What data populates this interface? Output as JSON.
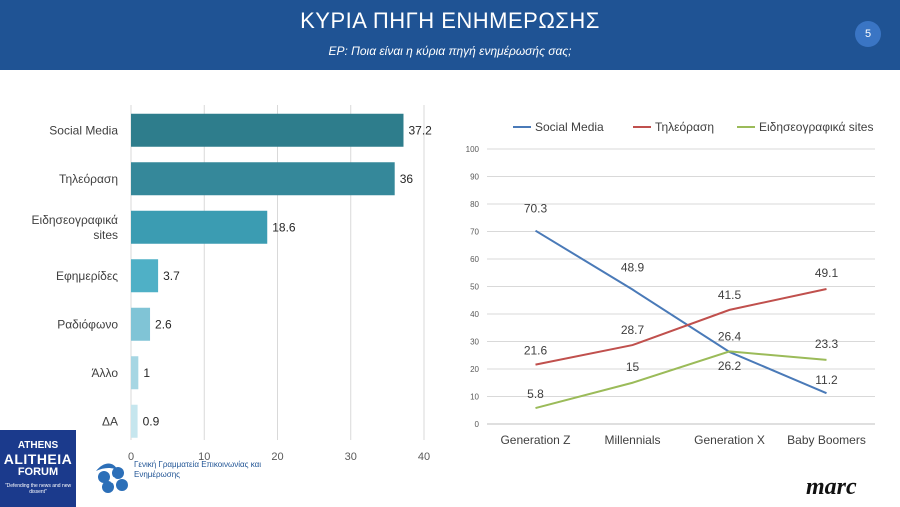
{
  "header": {
    "title": "ΚΥΡΙΑ ΠΗΓΗ ΕΝΗΜΕΡΩΣΗΣ",
    "subtitle": "ΕΡ: Ποια είναι η κύρια πηγή ενημέρωσής σας;",
    "page_number": "5"
  },
  "colors": {
    "header_bg": "#1f5394",
    "social_media": "#4a7ab8",
    "tv": "#c0504d",
    "news_sites": "#9bbb59"
  },
  "chart_data": [
    {
      "type": "bar",
      "orientation": "horizontal",
      "categories": [
        [
          "Social Media"
        ],
        [
          "Τηλεόραση"
        ],
        [
          "Ειδησεογραφικά",
          "sites"
        ],
        [
          "Εφημερίδες"
        ],
        [
          "Ραδιόφωνο"
        ],
        [
          "Άλλο"
        ],
        [
          "ΔΑ"
        ]
      ],
      "values": [
        37.2,
        36,
        18.6,
        3.7,
        2.6,
        1,
        0.9
      ],
      "value_labels": [
        "37.2",
        "36",
        "18.6",
        "3.7",
        "2.6",
        "1",
        "0.9"
      ],
      "bar_colors": [
        "#2e7d8c",
        "#35889a",
        "#3b9cb2",
        "#4fb0c6",
        "#80c4d6",
        "#a6d6e3",
        "#c6e6ee"
      ],
      "xlim": [
        0,
        40
      ],
      "xticks": [
        "0",
        "10",
        "20",
        "30",
        "40"
      ],
      "grid": true
    },
    {
      "type": "line",
      "categories": [
        "Generation Z",
        "Millennials",
        "Generation X",
        "Baby Boomers"
      ],
      "series": [
        {
          "name": "Social Media",
          "values": [
            70.3,
            48.9,
            26.2,
            11.2
          ],
          "labels": [
            "70.3",
            "48.9",
            "26.2",
            "11.2"
          ],
          "color": "#4a7ab8"
        },
        {
          "name": "Τηλεόραση",
          "values": [
            21.6,
            28.7,
            41.5,
            49.1
          ],
          "labels": [
            "21.6",
            "28.7",
            "41.5",
            "49.1"
          ],
          "color": "#c0504d"
        },
        {
          "name": "Ειδησεογραφικά sites",
          "values": [
            5.8,
            15,
            26.4,
            23.3
          ],
          "labels": [
            "5.8",
            "15",
            "26.4",
            "23.3"
          ],
          "color": "#9bbb59"
        }
      ],
      "ylim": [
        0,
        100
      ],
      "yticks": [
        "0",
        "10",
        "20",
        "30",
        "40",
        "50",
        "60",
        "70",
        "80",
        "90",
        "100"
      ],
      "legend": "top",
      "grid": true
    }
  ],
  "footer": {
    "forum_logo": {
      "line1": "ATHENS",
      "line2": "ALITHEIA",
      "line3": "FORUM",
      "line4": "\"Defending the news and new dissent\""
    },
    "gov_logo_text": "Γενική Γραμματεία Επικοινωνίας και Ενημέρωσης",
    "marc_logo": "marc"
  }
}
